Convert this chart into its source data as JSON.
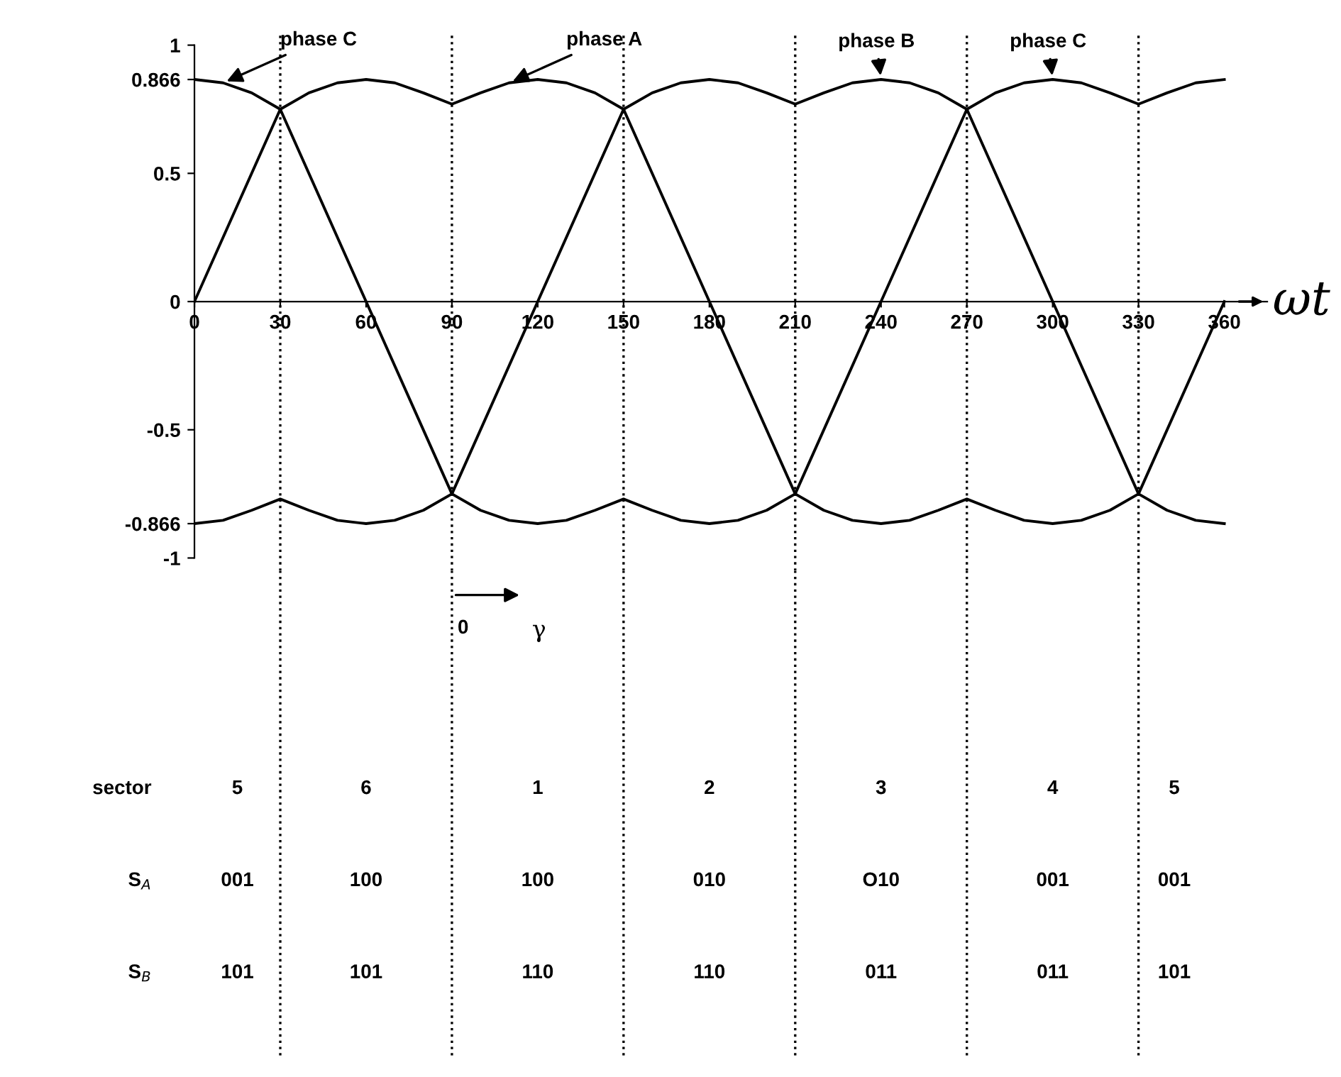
{
  "chart_data": {
    "type": "line",
    "xlabel": "ωt",
    "x": [
      0,
      10,
      20,
      30,
      40,
      50,
      60,
      70,
      80,
      90,
      100,
      110,
      120,
      130,
      140,
      150,
      160,
      170,
      180,
      190,
      200,
      210,
      220,
      230,
      240,
      250,
      260,
      270,
      280,
      290,
      300,
      310,
      320,
      330,
      340,
      350,
      360
    ],
    "series": [
      {
        "color": "#000000",
        "values": [
          0.866,
          0.853,
          0.814,
          0.75,
          0.814,
          0.853,
          0.866,
          0.853,
          0.814,
          0.77,
          0.814,
          0.853,
          0.866,
          0.853,
          0.814,
          0.75,
          0.814,
          0.853,
          0.866,
          0.853,
          0.814,
          0.77,
          0.814,
          0.853,
          0.866,
          0.853,
          0.814,
          0.75,
          0.814,
          0.853,
          0.866,
          0.853,
          0.814,
          0.77,
          0.814,
          0.853,
          0.866
        ]
      },
      {
        "color": "#000000",
        "values": [
          -0.866,
          -0.853,
          -0.814,
          -0.77,
          -0.814,
          -0.853,
          -0.866,
          -0.853,
          -0.814,
          -0.75,
          -0.814,
          -0.853,
          -0.866,
          -0.853,
          -0.814,
          -0.77,
          -0.814,
          -0.853,
          -0.866,
          -0.853,
          -0.814,
          -0.75,
          -0.814,
          -0.853,
          -0.866,
          -0.853,
          -0.814,
          -0.77,
          -0.814,
          -0.853,
          -0.866,
          -0.853,
          -0.814,
          -0.75,
          -0.814,
          -0.853,
          -0.866
        ]
      },
      {
        "color": "#000000",
        "x": [
          0,
          30,
          60,
          90,
          120,
          150,
          180,
          210,
          240,
          270,
          300,
          330,
          360
        ],
        "values": [
          0,
          0.75,
          0,
          -0.75,
          0,
          0.75,
          0,
          -0.75,
          0,
          0.75,
          0,
          -0.75,
          0
        ]
      }
    ],
    "xlim": [
      0,
      375
    ],
    "ylim": [
      -1.05,
      1.05
    ],
    "xticks": [
      0,
      30,
      60,
      90,
      120,
      150,
      180,
      210,
      240,
      270,
      300,
      330,
      360
    ],
    "yticks": [
      -1,
      -0.866,
      -0.5,
      0,
      0.5,
      0.866,
      1
    ],
    "ref_lines": [
      {
        "axis": "x",
        "value": 30,
        "line_style": "dotted"
      },
      {
        "axis": "x",
        "value": 90,
        "line_style": "dotted"
      },
      {
        "axis": "x",
        "value": 150,
        "line_style": "dotted"
      },
      {
        "axis": "x",
        "value": 210,
        "line_style": "dotted"
      },
      {
        "axis": "x",
        "value": 270,
        "line_style": "dotted"
      },
      {
        "axis": "x",
        "value": 330,
        "line_style": "dotted"
      }
    ],
    "grid": false,
    "legend": false,
    "marker": "none",
    "line_style": "solid",
    "annotations": [
      {
        "text": "phase C",
        "x": 10,
        "y": 0.853
      },
      {
        "text": "phase A",
        "x": 110,
        "y": 0.853
      },
      {
        "text": "phase B",
        "x": 240,
        "y": 0.866
      },
      {
        "text": "phase C",
        "x": 300,
        "y": 0.866
      },
      "0",
      "γ",
      "sector",
      "5",
      "6",
      "1",
      "2",
      "3",
      "4",
      "5",
      "S$_{A}$",
      "001",
      "100",
      "100",
      "010",
      "O10",
      "001",
      "001",
      "S$_{B}$",
      "101",
      "101",
      "110",
      "110",
      "011",
      "011",
      "101"
    ]
  }
}
